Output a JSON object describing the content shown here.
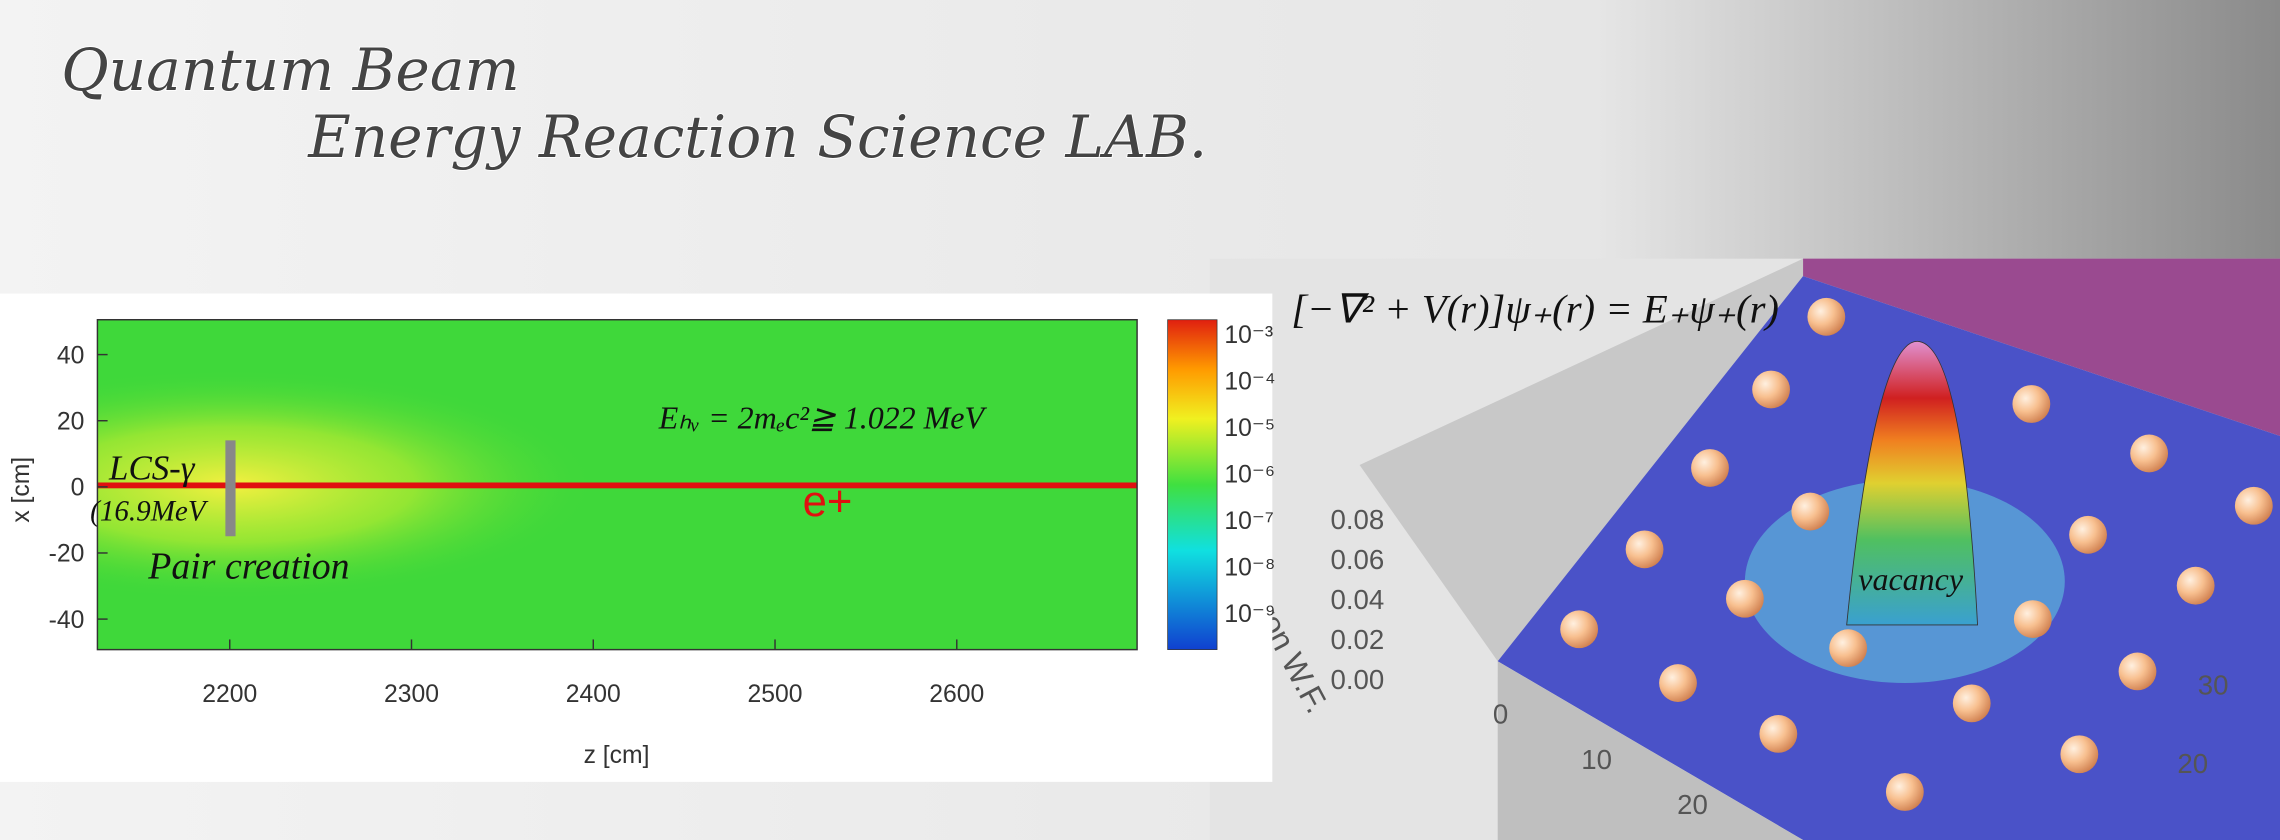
{
  "header": {
    "title_line1": "Quantum Beam",
    "title_line2": "Energy Reaction Science LAB."
  },
  "simulation": {
    "x_label": "x [cm]",
    "z_label": "z [cm]",
    "x_ticks": [
      "40",
      "20",
      "0",
      "-20",
      "-40"
    ],
    "z_ticks": [
      "2200",
      "2300",
      "2400",
      "2500",
      "2600"
    ],
    "source_label": "LCS-γ",
    "source_energy": "(16.9MeV",
    "process": "Pair creation",
    "threshold": "Eₕᵥ = 2mₑc²≧ 1.022 MeV",
    "particle": "e+",
    "colorbar_ticks": [
      "10⁻³",
      "10⁻⁴",
      "10⁻⁵",
      "10⁻⁶",
      "10⁻⁷",
      "10⁻⁸",
      "10⁻⁹"
    ]
  },
  "wavefunction": {
    "equation": "[−∇² + V(r)]ψ₊(r) = E₊ψ₊(r)",
    "z_label": "Positron W.F.",
    "z_ticks": [
      "0.08",
      "0.06",
      "0.04",
      "0.02",
      "0.00"
    ],
    "x_ticks": [
      "0",
      "10",
      "20"
    ],
    "y_ticks": [
      "30",
      "20"
    ],
    "defect": "vacancy"
  }
}
